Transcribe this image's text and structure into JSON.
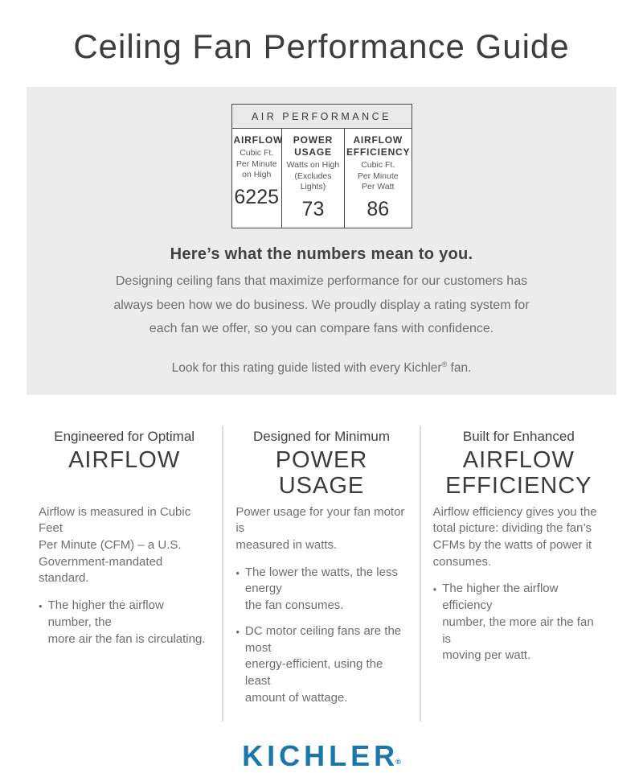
{
  "title": "Ceiling Fan Performance Guide",
  "colors": {
    "panel_gray": "#ececec",
    "table_border": "#49494b",
    "text_dark": "#3c3c3e",
    "text_gray": "#6d6e70",
    "divider_gray": "#dedede",
    "kichler_blue": "#1a78ad"
  },
  "panel": {
    "table": {
      "header": "AIR PERFORMANCE",
      "columns": [
        {
          "label": "AIRFLOW",
          "sublabel": "Cubic Ft.\nPer Minute\non High",
          "value": "6225"
        },
        {
          "label": "POWER\nUSAGE",
          "sublabel": "Watts on High\n(Excludes\nLights)",
          "value": "73"
        },
        {
          "label": "AIRFLOW\nEFFICIENCY",
          "sublabel": "Cubic Ft.\nPer Minute\nPer Watt",
          "value": "86"
        }
      ]
    },
    "heading": "Here’s what the numbers mean to you.",
    "body": "Designing ceiling fans that maximize performance for our customers has\nalways been how we do business. We proudly display a rating system for\neach fan we offer, so you can compare fans with confidence.",
    "note_prefix": "Look for this rating guide listed with every Kichler",
    "note_reg": "®",
    "note_suffix": " fan."
  },
  "columns": [
    {
      "kicker": "Engineered for Optimal",
      "title": "AIRFLOW",
      "body": "Airflow is measured in Cubic Feet\nPer Minute (CFM) – a U.S.\nGovernment-mandated standard.",
      "bullet_glyph": "•",
      "bullets": [
        "The higher the airflow number, the\nmore air the fan is circulating."
      ]
    },
    {
      "kicker": "Designed for Minimum",
      "title": "POWER\nUSAGE",
      "body": "Power usage for your fan motor is\nmeasured in watts.",
      "bullet_glyph": "•",
      "bullets": [
        "The lower the watts, the less energy\nthe fan consumes.",
        "DC motor ceiling fans are the most\nenergy-efficient, using the least\namount of wattage."
      ]
    },
    {
      "kicker": "Built for Enhanced",
      "title": "AIRFLOW\nEFFICIENCY",
      "body": "Airflow efficiency gives you the\ntotal picture: dividing the fan’s\nCFMs by the watts of power it\nconsumes.",
      "bullet_glyph": "•",
      "bullets": [
        "The higher the airflow efficiency\nnumber, the more air the fan is\nmoving per watt."
      ]
    }
  ],
  "footer": {
    "logo": "KICHLER",
    "logo_reg": "®"
  }
}
